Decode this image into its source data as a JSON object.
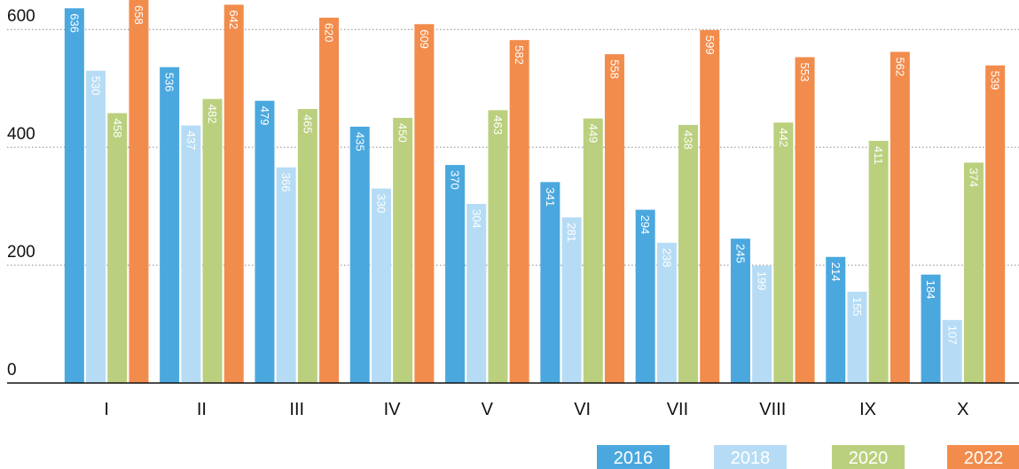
{
  "chart_data": {
    "type": "bar",
    "categories": [
      "I",
      "II",
      "III",
      "IV",
      "V",
      "VI",
      "VII",
      "VIII",
      "IX",
      "X"
    ],
    "series": [
      {
        "name": "2016",
        "color": "#4aa8df",
        "values": [
          636,
          536,
          479,
          435,
          370,
          341,
          294,
          245,
          214,
          184
        ]
      },
      {
        "name": "2018",
        "color": "#b6dcf5",
        "values": [
          530,
          437,
          366,
          330,
          304,
          281,
          238,
          199,
          155,
          107
        ]
      },
      {
        "name": "2020",
        "color": "#bad07e",
        "values": [
          458,
          482,
          465,
          450,
          463,
          449,
          438,
          442,
          411,
          374
        ]
      },
      {
        "name": "2022",
        "color": "#f28c4c",
        "values": [
          658,
          642,
          620,
          609,
          582,
          558,
          599,
          553,
          562,
          539
        ]
      }
    ],
    "ylim": [
      0,
      650
    ],
    "yticks": [
      0,
      200,
      400,
      600
    ],
    "grid": true,
    "legend": "bottom-right"
  }
}
